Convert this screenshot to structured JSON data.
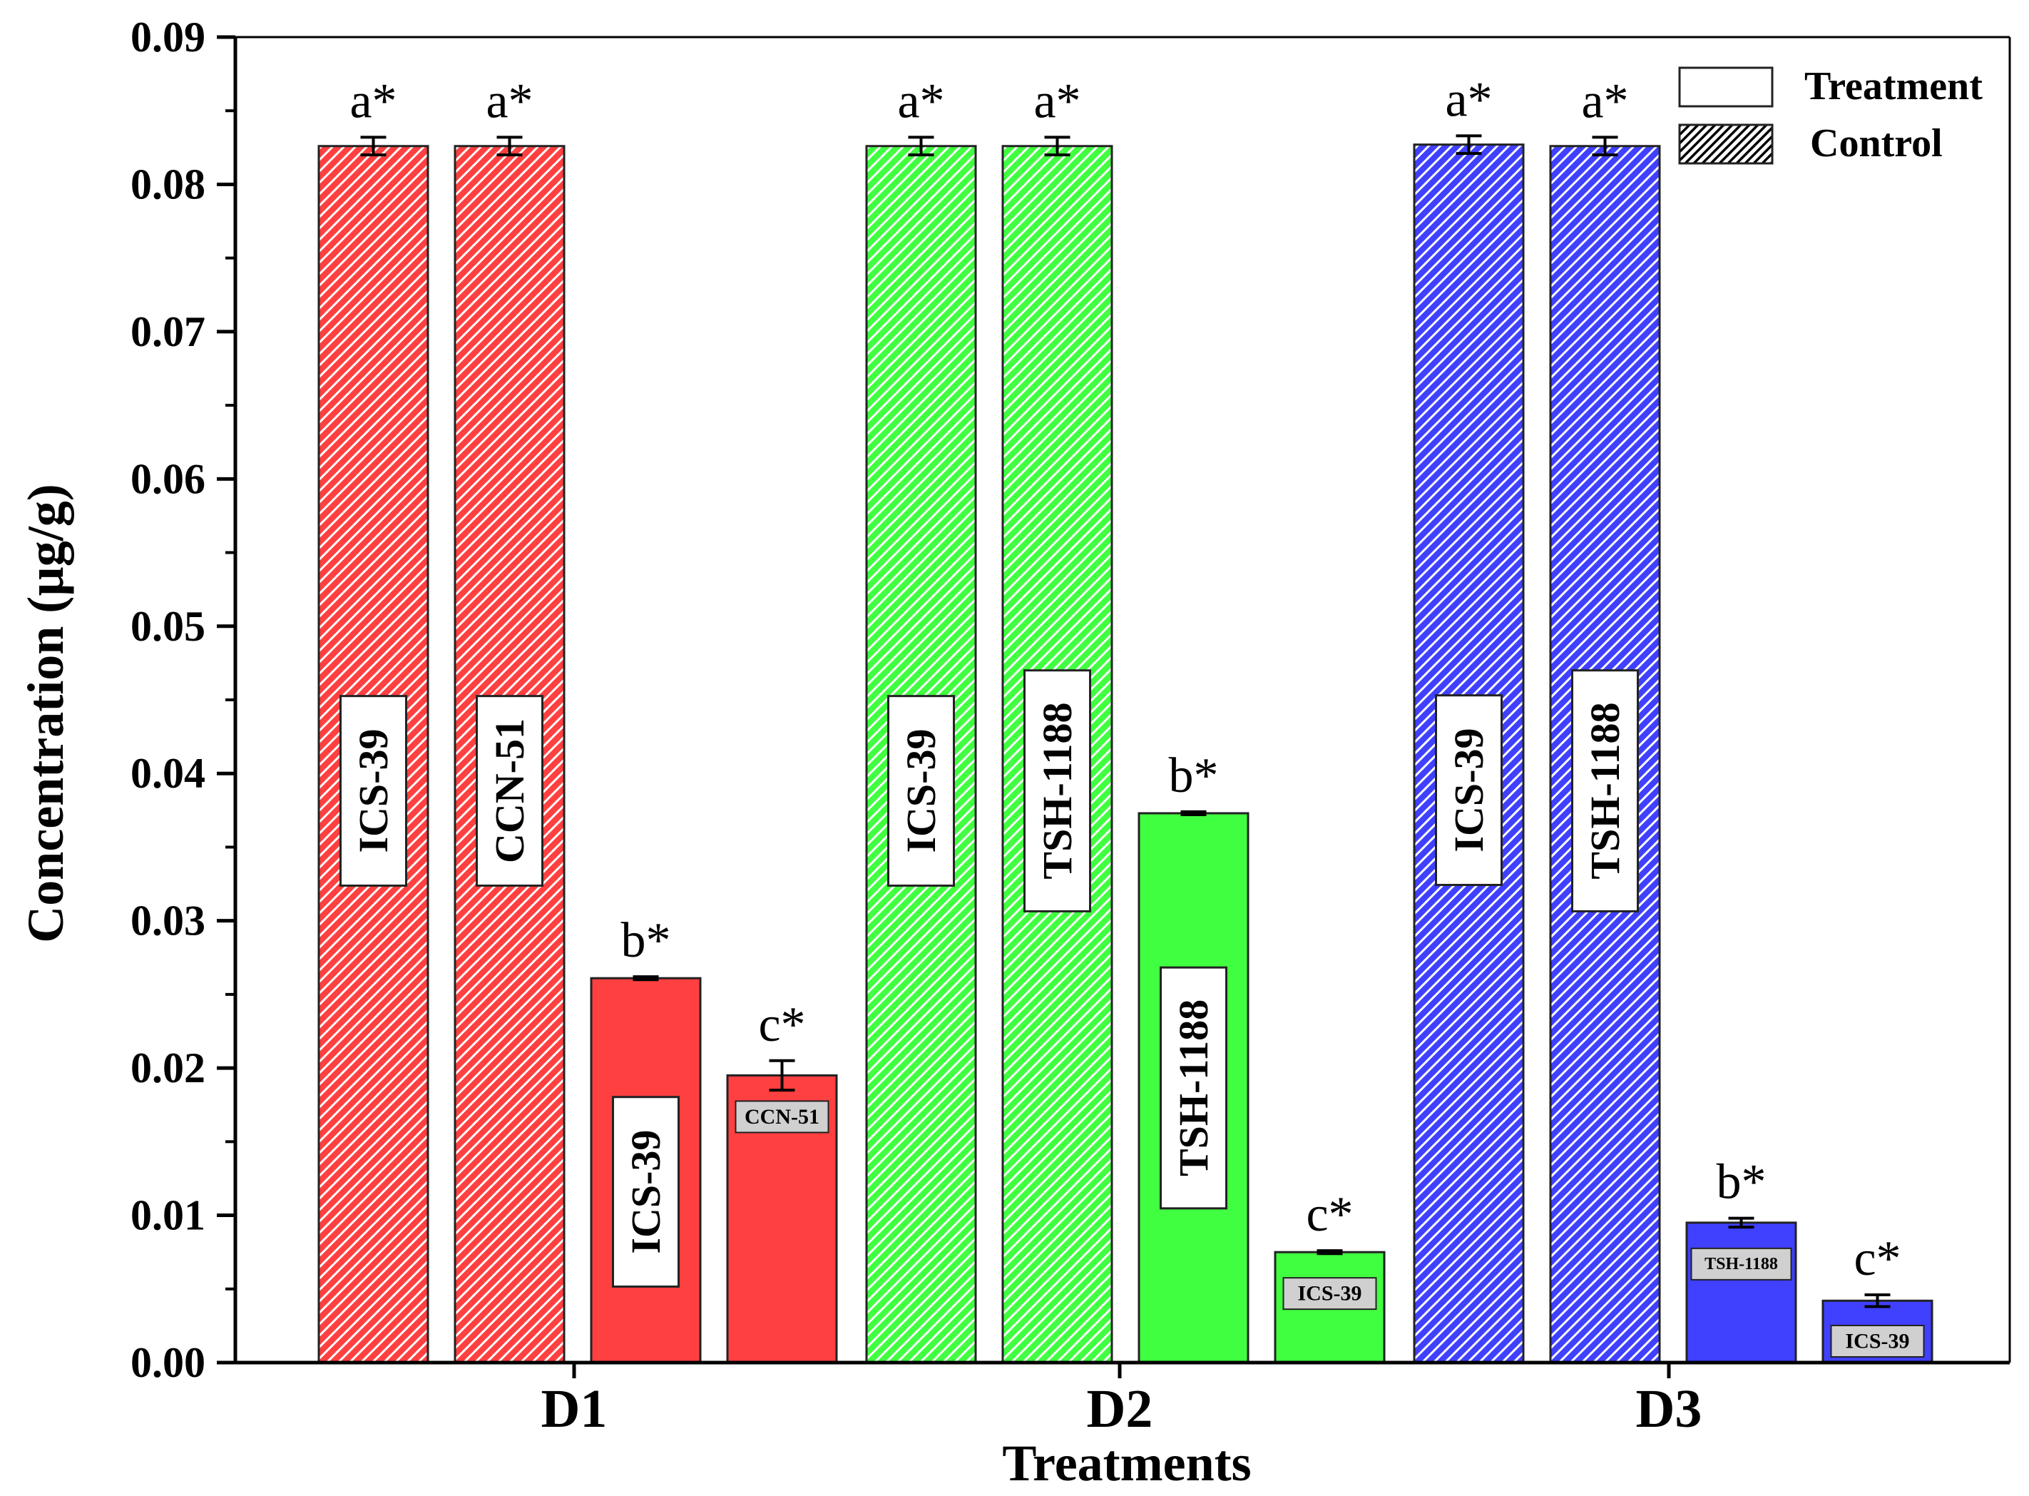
{
  "chart_data": {
    "type": "bar",
    "xlabel": "Treatments",
    "ylabel": "Concentration (µg/g)",
    "ylim": [
      0,
      0.09
    ],
    "yticks": [
      "0.00",
      "0.01",
      "0.02",
      "0.03",
      "0.04",
      "0.05",
      "0.06",
      "0.07",
      "0.08",
      "0.09"
    ],
    "categories": [
      "D1",
      "D2",
      "D3"
    ],
    "legend": {
      "position": "top-right",
      "entries": [
        {
          "name": "Treatment",
          "style": "solid"
        },
        {
          "name": "Control",
          "style": "hatched"
        }
      ]
    },
    "colors": {
      "D1": "#ff4040",
      "D2": "#40ff40",
      "D3": "#4040ff"
    },
    "groups": [
      {
        "category": "D1",
        "bars": [
          {
            "label": "ICS-39",
            "type": "Control",
            "value": 0.0826,
            "error": 0.0006,
            "sig": "a*"
          },
          {
            "label": "CCN-51",
            "type": "Control",
            "value": 0.0826,
            "error": 0.0006,
            "sig": "a*"
          },
          {
            "label": "ICS-39",
            "type": "Treatment",
            "value": 0.0261,
            "error": 0.0001,
            "sig": "b*"
          },
          {
            "label": "CCN-51",
            "type": "Treatment",
            "value": 0.0195,
            "error": 0.001,
            "sig": "c*"
          }
        ]
      },
      {
        "category": "D2",
        "bars": [
          {
            "label": "ICS-39",
            "type": "Control",
            "value": 0.0826,
            "error": 0.0006,
            "sig": "a*"
          },
          {
            "label": "TSH-1188",
            "type": "Control",
            "value": 0.0826,
            "error": 0.0006,
            "sig": "a*"
          },
          {
            "label": "TSH-1188",
            "type": "Treatment",
            "value": 0.0373,
            "error": 0.0001,
            "sig": "b*"
          },
          {
            "label": "ICS-39",
            "type": "Treatment",
            "value": 0.0075,
            "error": 0.0001,
            "sig": "c*"
          }
        ]
      },
      {
        "category": "D3",
        "bars": [
          {
            "label": "ICS-39",
            "type": "Control",
            "value": 0.0827,
            "error": 0.0006,
            "sig": "a*"
          },
          {
            "label": "TSH-1188",
            "type": "Control",
            "value": 0.0826,
            "error": 0.0006,
            "sig": "a*"
          },
          {
            "label": "TSH-1188",
            "type": "Treatment",
            "value": 0.0095,
            "error": 0.0003,
            "sig": "b*"
          },
          {
            "label": "ICS-39",
            "type": "Treatment",
            "value": 0.0042,
            "error": 0.0004,
            "sig": "c*"
          }
        ]
      }
    ]
  }
}
